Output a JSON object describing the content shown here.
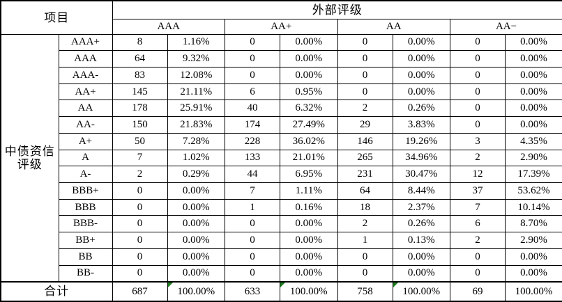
{
  "table": {
    "corner_header": "项目",
    "group_header": "外部评级",
    "column_groups": [
      "AAA",
      "AA+",
      "AA",
      "AA−"
    ],
    "row_group_label": "中债资信\n评级",
    "rows": [
      {
        "label": "AAA+",
        "values": [
          "8",
          "1.16%",
          "0",
          "0.00%",
          "0",
          "0.00%",
          "0",
          "0.00%"
        ]
      },
      {
        "label": "AAA",
        "values": [
          "64",
          "9.32%",
          "0",
          "0.00%",
          "0",
          "0.00%",
          "0",
          "0.00%"
        ]
      },
      {
        "label": "AAA-",
        "values": [
          "83",
          "12.08%",
          "0",
          "0.00%",
          "0",
          "0.00%",
          "0",
          "0.00%"
        ]
      },
      {
        "label": "AA+",
        "values": [
          "145",
          "21.11%",
          "6",
          "0.95%",
          "0",
          "0.00%",
          "0",
          "0.00%"
        ]
      },
      {
        "label": "AA",
        "values": [
          "178",
          "25.91%",
          "40",
          "6.32%",
          "2",
          "0.26%",
          "0",
          "0.00%"
        ]
      },
      {
        "label": "AA-",
        "values": [
          "150",
          "21.83%",
          "174",
          "27.49%",
          "29",
          "3.83%",
          "0",
          "0.00%"
        ]
      },
      {
        "label": "A+",
        "values": [
          "50",
          "7.28%",
          "228",
          "36.02%",
          "146",
          "19.26%",
          "3",
          "4.35%"
        ]
      },
      {
        "label": "A",
        "values": [
          "7",
          "1.02%",
          "133",
          "21.01%",
          "265",
          "34.96%",
          "2",
          "2.90%"
        ]
      },
      {
        "label": "A-",
        "values": [
          "2",
          "0.29%",
          "44",
          "6.95%",
          "231",
          "30.47%",
          "12",
          "17.39%"
        ]
      },
      {
        "label": "BBB+",
        "values": [
          "0",
          "0.00%",
          "7",
          "1.11%",
          "64",
          "8.44%",
          "37",
          "53.62%"
        ]
      },
      {
        "label": "BBB",
        "values": [
          "0",
          "0.00%",
          "1",
          "0.16%",
          "18",
          "2.37%",
          "7",
          "10.14%"
        ]
      },
      {
        "label": "BBB-",
        "values": [
          "0",
          "0.00%",
          "0",
          "0.00%",
          "2",
          "0.26%",
          "6",
          "8.70%"
        ]
      },
      {
        "label": "BB+",
        "values": [
          "0",
          "0.00%",
          "0",
          "0.00%",
          "1",
          "0.13%",
          "2",
          "2.90%"
        ]
      },
      {
        "label": "BB",
        "values": [
          "0",
          "0.00%",
          "0",
          "0.00%",
          "0",
          "0.00%",
          "0",
          "0.00%"
        ]
      },
      {
        "label": "BB-",
        "values": [
          "0",
          "0.00%",
          "0",
          "0.00%",
          "0",
          "0.00%",
          "0",
          "0.00%"
        ]
      }
    ],
    "total": {
      "label": "合计",
      "values": [
        "687",
        "100.00%",
        "633",
        "100.00%",
        "758",
        "100.00%",
        "69",
        "100.00%"
      ],
      "flagged_value_indexes": [
        1,
        3,
        5
      ]
    },
    "colors": {
      "border": "#000000",
      "text": "#000000",
      "background": "#ffffff",
      "flag_triangle": "#1e7d1e"
    }
  }
}
